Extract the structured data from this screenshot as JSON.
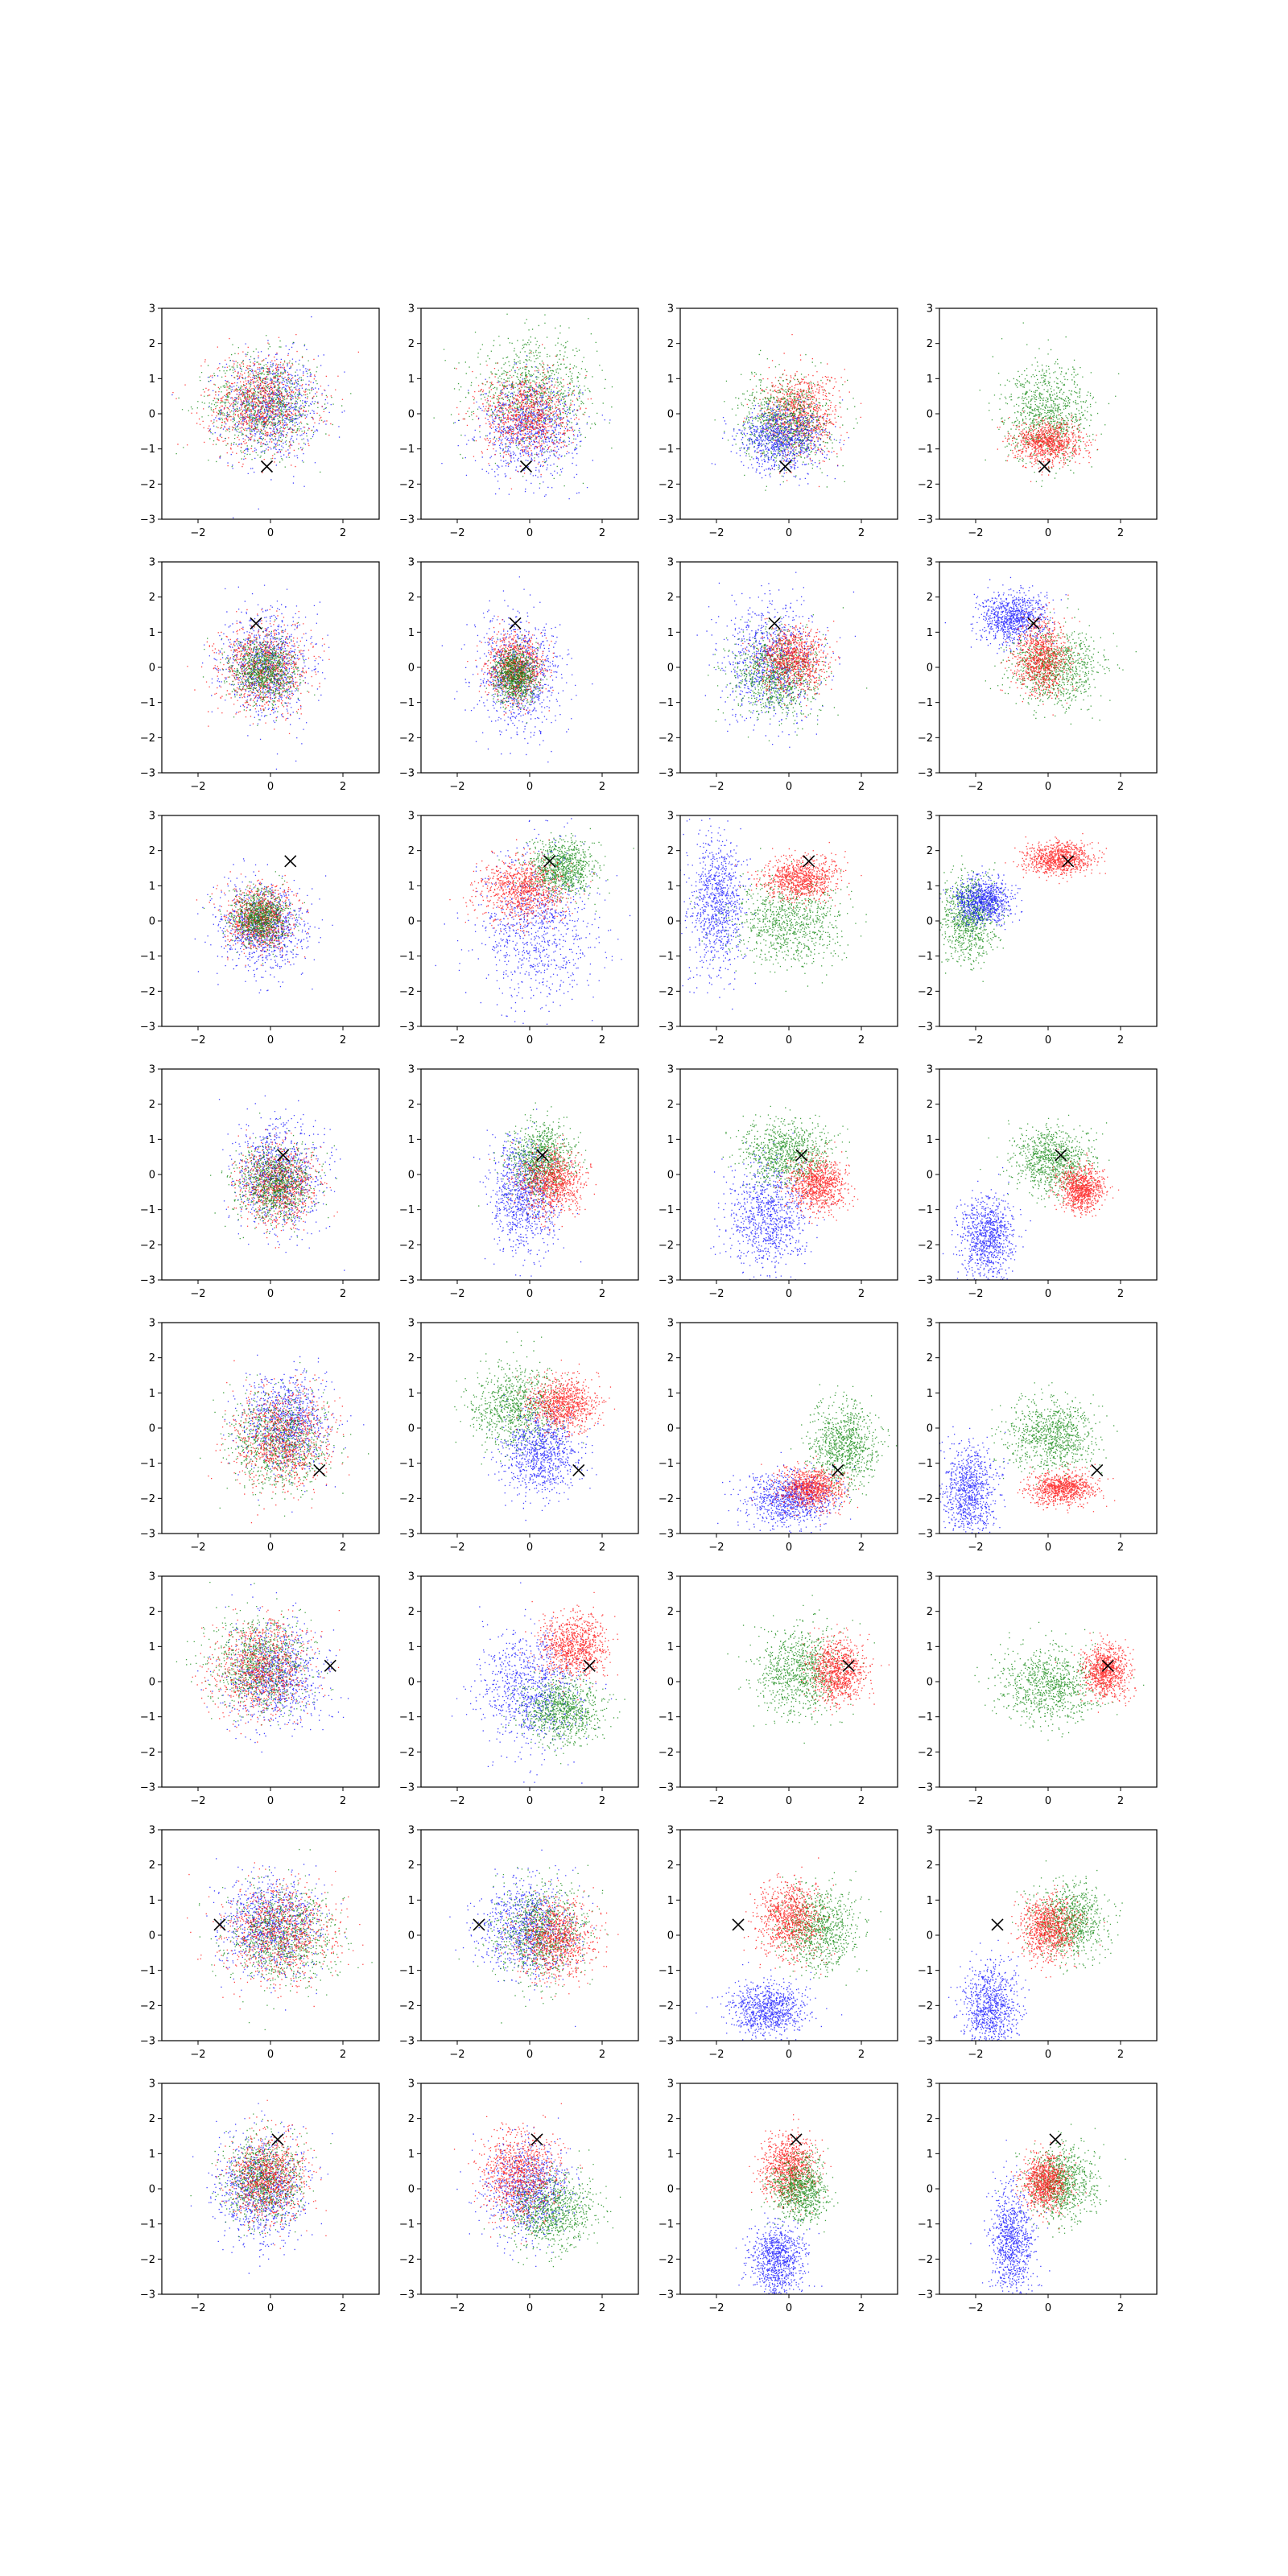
{
  "figure": {
    "rows": 8,
    "cols": 4,
    "xlim": [
      -3,
      3
    ],
    "ylim": [
      -3,
      3
    ],
    "xticks": [
      -2,
      0,
      2
    ],
    "yticks": [
      -3,
      -2,
      -1,
      0,
      1,
      2,
      3
    ],
    "tick_labels_x": [
      "−2",
      "0",
      "2"
    ],
    "tick_labels_y": [
      "−3",
      "−2",
      "−1",
      "0",
      "1",
      "2",
      "3"
    ],
    "grid": false,
    "legend": "none"
  },
  "colors": {
    "series_a": "#0000ff",
    "series_b": "#008000",
    "series_c": "#ff0000",
    "marker": "#000000"
  },
  "chart_data": {
    "type": "scatter",
    "description_rows": "each row shares one marked target point (x-marker); columns show progressively refined point clouds",
    "series": [
      {
        "name": "",
        "color": "#0000ff"
      },
      {
        "name": "",
        "color": "#008000"
      },
      {
        "name": "",
        "color": "#ff0000"
      }
    ],
    "markers": [
      {
        "row": 1,
        "x": -0.1,
        "y": -1.5
      },
      {
        "row": 2,
        "x": -0.4,
        "y": 1.25
      },
      {
        "row": 3,
        "x": 0.55,
        "y": 1.7
      },
      {
        "row": 4,
        "x": 0.35,
        "y": 0.55
      },
      {
        "row": 5,
        "x": 1.35,
        "y": -1.2
      },
      {
        "row": 6,
        "x": 1.65,
        "y": 0.45
      },
      {
        "row": 7,
        "x": -1.4,
        "y": 0.3
      },
      {
        "row": 8,
        "x": 0.2,
        "y": 1.4
      }
    ],
    "panels": [
      [
        {
          "clusters": [
            {
              "c": "b",
              "mx": 0.0,
              "my": 0.2,
              "sx": 0.9,
              "sy": 1.0
            },
            {
              "c": "g",
              "mx": -0.2,
              "my": 0.3,
              "sx": 1.0,
              "sy": 0.9
            },
            {
              "c": "r",
              "mx": -0.3,
              "my": 0.3,
              "sx": 1.0,
              "sy": 0.9
            }
          ]
        },
        {
          "clusters": [
            {
              "c": "g",
              "mx": 0.1,
              "my": 0.6,
              "sx": 1.1,
              "sy": 1.0
            },
            {
              "c": "b",
              "mx": 0.0,
              "my": -0.4,
              "sx": 0.9,
              "sy": 0.9
            },
            {
              "c": "r",
              "mx": -0.1,
              "my": 0.0,
              "sx": 0.8,
              "sy": 0.8
            }
          ]
        },
        {
          "clusters": [
            {
              "c": "r",
              "mx": 0.3,
              "my": 0.0,
              "sx": 0.7,
              "sy": 0.8
            },
            {
              "c": "g",
              "mx": -0.1,
              "my": -0.2,
              "sx": 0.8,
              "sy": 0.8
            },
            {
              "c": "b",
              "mx": -0.2,
              "my": -0.7,
              "sx": 0.8,
              "sy": 0.6
            }
          ]
        },
        {
          "clusters": [
            {
              "c": "g",
              "mx": 0.0,
              "my": 0.0,
              "sx": 0.8,
              "sy": 0.9
            },
            {
              "c": "r",
              "mx": 0.0,
              "my": -0.8,
              "sx": 0.6,
              "sy": 0.4
            }
          ]
        }
      ],
      [
        {
          "clusters": [
            {
              "c": "b",
              "mx": -0.1,
              "my": 0.1,
              "sx": 0.8,
              "sy": 1.0
            },
            {
              "c": "r",
              "mx": -0.2,
              "my": 0.0,
              "sx": 0.8,
              "sy": 0.8
            },
            {
              "c": "g",
              "mx": -0.2,
              "my": -0.1,
              "sx": 0.6,
              "sy": 0.6
            }
          ]
        },
        {
          "clusters": [
            {
              "c": "b",
              "mx": -0.3,
              "my": -0.2,
              "sx": 0.8,
              "sy": 1.1
            },
            {
              "c": "r",
              "mx": -0.4,
              "my": 0.0,
              "sx": 0.5,
              "sy": 0.6
            },
            {
              "c": "g",
              "mx": -0.4,
              "my": -0.2,
              "sx": 0.4,
              "sy": 0.5
            }
          ]
        },
        {
          "clusters": [
            {
              "c": "b",
              "mx": -0.5,
              "my": 0.2,
              "sx": 0.9,
              "sy": 1.1
            },
            {
              "c": "g",
              "mx": -0.4,
              "my": -0.2,
              "sx": 0.8,
              "sy": 0.8
            },
            {
              "c": "r",
              "mx": 0.1,
              "my": 0.2,
              "sx": 0.6,
              "sy": 0.6
            }
          ]
        },
        {
          "clusters": [
            {
              "c": "b",
              "mx": -1.0,
              "my": 1.4,
              "sx": 0.6,
              "sy": 0.5
            },
            {
              "c": "g",
              "mx": 0.2,
              "my": 0.0,
              "sx": 0.8,
              "sy": 0.7
            },
            {
              "c": "r",
              "mx": -0.2,
              "my": 0.3,
              "sx": 0.5,
              "sy": 0.7
            }
          ]
        }
      ],
      [
        {
          "clusters": [
            {
              "c": "b",
              "mx": -0.2,
              "my": -0.2,
              "sx": 0.8,
              "sy": 0.8
            },
            {
              "c": "r",
              "mx": -0.3,
              "my": 0.1,
              "sx": 0.6,
              "sy": 0.6
            },
            {
              "c": "g",
              "mx": -0.3,
              "my": 0.1,
              "sx": 0.5,
              "sy": 0.5
            }
          ]
        },
        {
          "clusters": [
            {
              "c": "b",
              "mx": 0.2,
              "my": -0.2,
              "sx": 1.0,
              "sy": 1.5
            },
            {
              "c": "g",
              "mx": 0.9,
              "my": 1.5,
              "sx": 0.6,
              "sy": 0.5
            },
            {
              "c": "r",
              "mx": -0.2,
              "my": 0.9,
              "sx": 0.8,
              "sy": 0.6
            }
          ]
        },
        {
          "clusters": [
            {
              "c": "b",
              "mx": -2.0,
              "my": 0.5,
              "sx": 0.5,
              "sy": 1.3
            },
            {
              "c": "g",
              "mx": 0.0,
              "my": 0.0,
              "sx": 1.0,
              "sy": 0.8
            },
            {
              "c": "r",
              "mx": 0.3,
              "my": 1.2,
              "sx": 0.7,
              "sy": 0.4
            }
          ]
        },
        {
          "clusters": [
            {
              "c": "g",
              "mx": -2.2,
              "my": 0.1,
              "sx": 0.5,
              "sy": 0.8
            },
            {
              "c": "b",
              "mx": -1.8,
              "my": 0.6,
              "sx": 0.5,
              "sy": 0.4
            },
            {
              "c": "r",
              "mx": 0.3,
              "my": 1.8,
              "sx": 0.6,
              "sy": 0.3
            }
          ]
        }
      ],
      [
        {
          "clusters": [
            {
              "c": "b",
              "mx": 0.2,
              "my": 0.0,
              "sx": 0.8,
              "sy": 1.0
            },
            {
              "c": "r",
              "mx": 0.2,
              "my": -0.3,
              "sx": 0.7,
              "sy": 0.7
            },
            {
              "c": "g",
              "mx": 0.1,
              "my": -0.3,
              "sx": 0.7,
              "sy": 0.7
            }
          ]
        },
        {
          "clusters": [
            {
              "c": "b",
              "mx": -0.2,
              "my": -0.6,
              "sx": 0.6,
              "sy": 1.1
            },
            {
              "c": "g",
              "mx": 0.3,
              "my": 0.4,
              "sx": 0.6,
              "sy": 0.7
            },
            {
              "c": "r",
              "mx": 0.6,
              "my": -0.2,
              "sx": 0.6,
              "sy": 0.6
            }
          ]
        },
        {
          "clusters": [
            {
              "c": "b",
              "mx": -0.6,
              "my": -1.2,
              "sx": 0.7,
              "sy": 1.0
            },
            {
              "c": "g",
              "mx": -0.1,
              "my": 0.6,
              "sx": 0.8,
              "sy": 0.6
            },
            {
              "c": "r",
              "mx": 0.8,
              "my": -0.3,
              "sx": 0.5,
              "sy": 0.5
            }
          ]
        },
        {
          "clusters": [
            {
              "c": "b",
              "mx": -1.7,
              "my": -1.8,
              "sx": 0.5,
              "sy": 0.8
            },
            {
              "c": "g",
              "mx": 0.1,
              "my": 0.4,
              "sx": 0.7,
              "sy": 0.6
            },
            {
              "c": "r",
              "mx": 0.9,
              "my": -0.4,
              "sx": 0.4,
              "sy": 0.4
            }
          ]
        }
      ],
      [
        {
          "clusters": [
            {
              "c": "b",
              "mx": 0.4,
              "my": 0.2,
              "sx": 0.8,
              "sy": 0.9
            },
            {
              "c": "g",
              "mx": 0.2,
              "my": -0.4,
              "sx": 0.9,
              "sy": 0.9
            },
            {
              "c": "r",
              "mx": 0.3,
              "my": -0.3,
              "sx": 0.9,
              "sy": 0.9
            }
          ]
        },
        {
          "clusters": [
            {
              "c": "g",
              "mx": -0.4,
              "my": 0.6,
              "sx": 0.8,
              "sy": 0.8
            },
            {
              "c": "b",
              "mx": 0.3,
              "my": -0.7,
              "sx": 0.7,
              "sy": 0.8
            },
            {
              "c": "r",
              "mx": 0.9,
              "my": 0.7,
              "sx": 0.6,
              "sy": 0.5
            }
          ]
        },
        {
          "clusters": [
            {
              "c": "g",
              "mx": 1.5,
              "my": -0.5,
              "sx": 0.6,
              "sy": 0.8
            },
            {
              "c": "b",
              "mx": 0.0,
              "my": -2.0,
              "sx": 0.8,
              "sy": 0.5
            },
            {
              "c": "r",
              "mx": 0.6,
              "my": -1.7,
              "sx": 0.6,
              "sy": 0.4
            }
          ]
        },
        {
          "clusters": [
            {
              "c": "b",
              "mx": -2.2,
              "my": -1.8,
              "sx": 0.5,
              "sy": 0.9
            },
            {
              "c": "g",
              "mx": 0.1,
              "my": -0.2,
              "sx": 0.8,
              "sy": 0.7
            },
            {
              "c": "r",
              "mx": 0.4,
              "my": -1.7,
              "sx": 0.6,
              "sy": 0.3
            }
          ]
        }
      ],
      [
        {
          "clusters": [
            {
              "c": "b",
              "mx": 0.1,
              "my": 0.2,
              "sx": 0.9,
              "sy": 1.0
            },
            {
              "c": "g",
              "mx": -0.3,
              "my": 0.5,
              "sx": 0.9,
              "sy": 0.9
            },
            {
              "c": "r",
              "mx": -0.3,
              "my": 0.4,
              "sx": 0.9,
              "sy": 0.9
            }
          ]
        },
        {
          "clusters": [
            {
              "c": "b",
              "mx": 0.0,
              "my": -0.2,
              "sx": 0.9,
              "sy": 1.1
            },
            {
              "c": "g",
              "mx": 0.9,
              "my": -0.8,
              "sx": 0.7,
              "sy": 0.6
            },
            {
              "c": "r",
              "mx": 1.2,
              "my": 1.0,
              "sx": 0.6,
              "sy": 0.6
            }
          ]
        },
        {
          "clusters": [
            {
              "c": "g",
              "mx": 0.3,
              "my": 0.3,
              "sx": 0.8,
              "sy": 0.8
            },
            {
              "c": "r",
              "mx": 1.3,
              "my": 0.3,
              "sx": 0.5,
              "sy": 0.6
            }
          ]
        },
        {
          "clusters": [
            {
              "c": "g",
              "mx": 0.0,
              "my": -0.1,
              "sx": 0.9,
              "sy": 0.7
            },
            {
              "c": "r",
              "mx": 1.6,
              "my": 0.3,
              "sx": 0.4,
              "sy": 0.5
            }
          ]
        }
      ],
      [
        {
          "clusters": [
            {
              "c": "b",
              "mx": 0.0,
              "my": 0.3,
              "sx": 0.9,
              "sy": 0.9
            },
            {
              "c": "g",
              "mx": 0.3,
              "my": 0.0,
              "sx": 1.0,
              "sy": 0.9
            },
            {
              "c": "r",
              "mx": 0.2,
              "my": 0.1,
              "sx": 1.0,
              "sy": 0.9
            }
          ]
        },
        {
          "clusters": [
            {
              "c": "b",
              "mx": -0.1,
              "my": 0.2,
              "sx": 0.9,
              "sy": 0.9
            },
            {
              "c": "g",
              "mx": 0.3,
              "my": 0.1,
              "sx": 0.8,
              "sy": 0.9
            },
            {
              "c": "r",
              "mx": 0.7,
              "my": -0.1,
              "sx": 0.7,
              "sy": 0.7
            }
          ]
        },
        {
          "clusters": [
            {
              "c": "b",
              "mx": -0.6,
              "my": -2.1,
              "sx": 0.7,
              "sy": 0.5
            },
            {
              "c": "g",
              "mx": 0.8,
              "my": 0.2,
              "sx": 0.7,
              "sy": 0.8
            },
            {
              "c": "r",
              "mx": 0.0,
              "my": 0.5,
              "sx": 0.6,
              "sy": 0.7
            }
          ]
        },
        {
          "clusters": [
            {
              "c": "b",
              "mx": -1.6,
              "my": -2.0,
              "sx": 0.5,
              "sy": 0.8
            },
            {
              "c": "g",
              "mx": 0.6,
              "my": 0.4,
              "sx": 0.7,
              "sy": 0.7
            },
            {
              "c": "r",
              "mx": 0.0,
              "my": 0.2,
              "sx": 0.5,
              "sy": 0.6
            }
          ]
        }
      ],
      [
        {
          "clusters": [
            {
              "c": "b",
              "mx": -0.3,
              "my": 0.0,
              "sx": 0.8,
              "sy": 1.0
            },
            {
              "c": "g",
              "mx": -0.2,
              "my": 0.3,
              "sx": 0.7,
              "sy": 0.8
            },
            {
              "c": "r",
              "mx": -0.1,
              "my": 0.3,
              "sx": 0.7,
              "sy": 0.8
            }
          ]
        },
        {
          "clusters": [
            {
              "c": "b",
              "mx": -0.1,
              "my": 0.0,
              "sx": 0.8,
              "sy": 0.9
            },
            {
              "c": "g",
              "mx": 0.6,
              "my": -0.6,
              "sx": 0.8,
              "sy": 0.7
            },
            {
              "c": "r",
              "mx": -0.3,
              "my": 0.4,
              "sx": 0.7,
              "sy": 0.8
            }
          ]
        },
        {
          "clusters": [
            {
              "c": "b",
              "mx": -0.3,
              "my": -2.0,
              "sx": 0.5,
              "sy": 0.7
            },
            {
              "c": "r",
              "mx": 0.0,
              "my": 0.6,
              "sx": 0.5,
              "sy": 0.6
            },
            {
              "c": "g",
              "mx": 0.3,
              "my": 0.0,
              "sx": 0.5,
              "sy": 0.6
            }
          ]
        },
        {
          "clusters": [
            {
              "c": "b",
              "mx": -1.0,
              "my": -1.5,
              "sx": 0.4,
              "sy": 1.0
            },
            {
              "c": "g",
              "mx": 0.4,
              "my": 0.2,
              "sx": 0.6,
              "sy": 0.7
            },
            {
              "c": "r",
              "mx": -0.1,
              "my": 0.2,
              "sx": 0.4,
              "sy": 0.5
            }
          ]
        }
      ]
    ]
  }
}
